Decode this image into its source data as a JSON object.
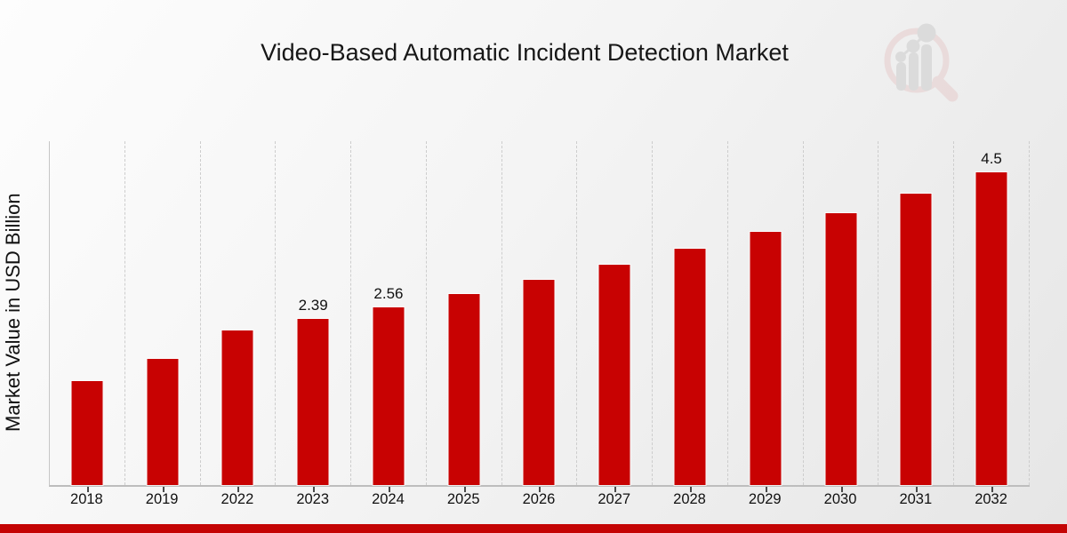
{
  "page": {
    "title": "Video-Based Automatic Incident Detection Market"
  },
  "colors": {
    "bar": "#c80202",
    "bottom_band": "#c40404",
    "background_top": "#fdfdfd",
    "background_bottom": "#e6e6e6",
    "axis_line": "#c6c6c6",
    "gridline": "#cdcdcd",
    "text": "#111111",
    "logo_ring": "#e6cccc",
    "logo_bars": "#cccccc"
  },
  "chart_data": {
    "type": "bar",
    "title": "Video-Based Automatic Incident Detection Market",
    "xlabel": "",
    "ylabel": "Market Value in USD Billion",
    "categories": [
      "2018",
      "2019",
      "2022",
      "2023",
      "2024",
      "2025",
      "2026",
      "2027",
      "2028",
      "2029",
      "2030",
      "2031",
      "2032"
    ],
    "values": [
      1.5,
      1.82,
      2.23,
      2.39,
      2.56,
      2.75,
      2.95,
      3.17,
      3.4,
      3.65,
      3.91,
      4.19,
      4.5
    ],
    "value_labels": [
      "",
      "",
      "",
      "2.39",
      "2.56",
      "",
      "",
      "",
      "",
      "",
      "",
      "",
      "4.5"
    ],
    "ylim": [
      0,
      4.95
    ],
    "grid": "vertical-dashed",
    "legend": "none",
    "bar_color": "#c80202"
  }
}
